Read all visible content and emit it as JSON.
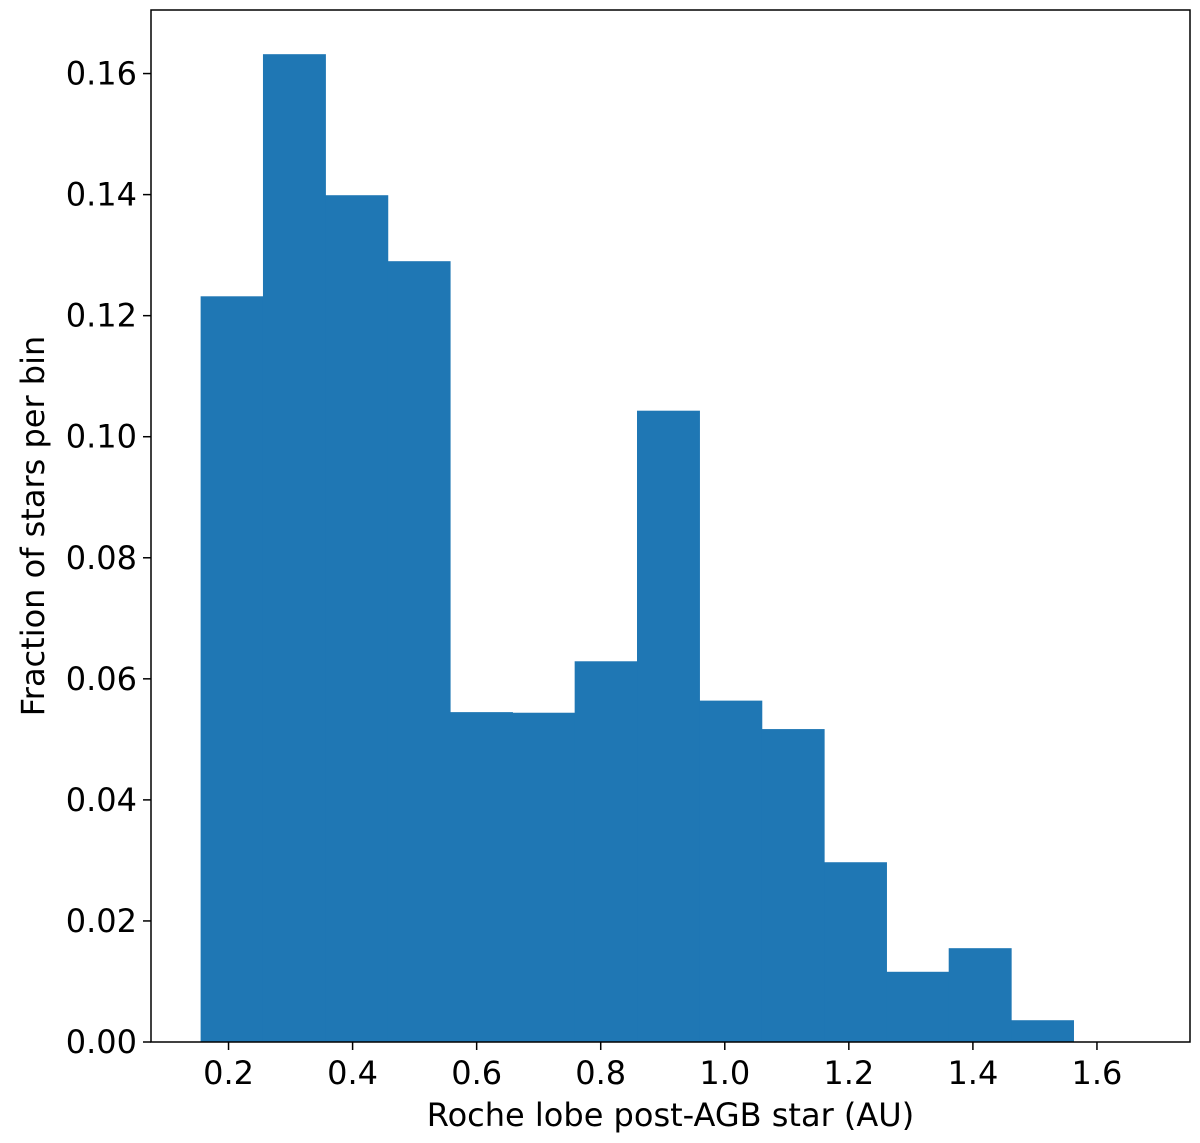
{
  "chart_data": {
    "type": "bar",
    "title": "",
    "xlabel": "Roche lobe post-AGB star (AU)",
    "ylabel": "Fraction of stars per bin",
    "xlim": [
      0.075,
      1.75
    ],
    "ylim": [
      0.0,
      0.1705
    ],
    "bar_color": "#1f77b4",
    "bin_edges": [
      0.155,
      0.2555,
      0.356,
      0.4565,
      0.557,
      0.6575,
      0.758,
      0.8585,
      0.959,
      1.0595,
      1.16,
      1.2605,
      1.361,
      1.4615,
      1.562
    ],
    "values": [
      0.1232,
      0.1632,
      0.1399,
      0.129,
      0.0545,
      0.0544,
      0.0629,
      0.1043,
      0.0564,
      0.0517,
      0.0297,
      0.0116,
      0.0155,
      0.0036
    ],
    "xticks": [
      0.2,
      0.4,
      0.6,
      0.8,
      1.0,
      1.2,
      1.4,
      1.6
    ],
    "xtick_labels": [
      "0.2",
      "0.4",
      "0.6",
      "0.8",
      "1.0",
      "1.2",
      "1.4",
      "1.6"
    ],
    "yticks": [
      0.0,
      0.02,
      0.04,
      0.06,
      0.08,
      0.1,
      0.12,
      0.14,
      0.16
    ],
    "ytick_labels": [
      "0.00",
      "0.02",
      "0.04",
      "0.06",
      "0.08",
      "0.10",
      "0.12",
      "0.14",
      "0.16"
    ],
    "grid": false,
    "legend": "none"
  }
}
